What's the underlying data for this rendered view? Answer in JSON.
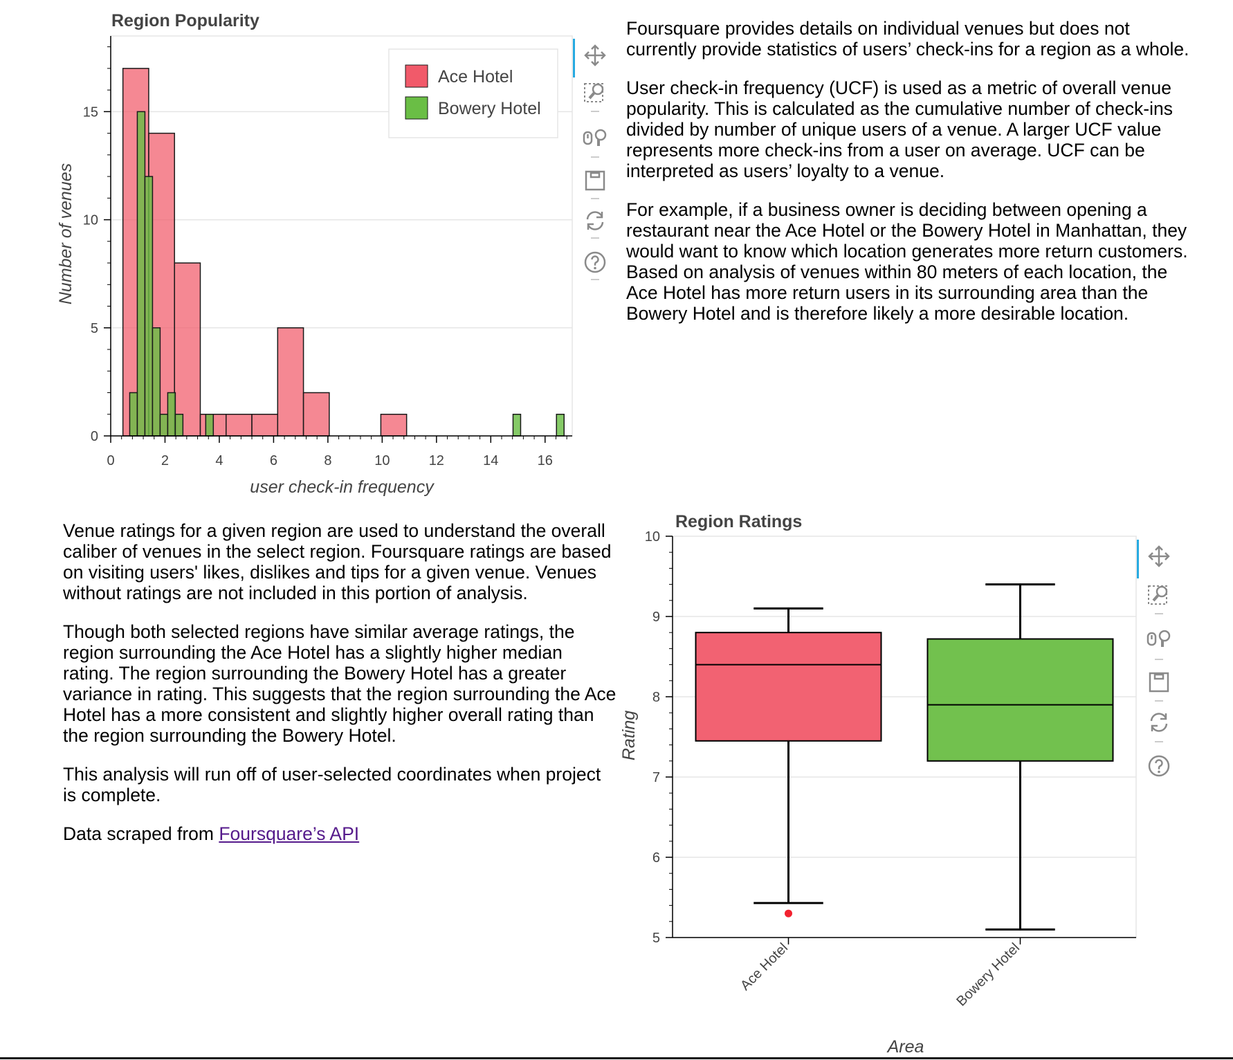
{
  "chart_data": [
    {
      "type": "bar",
      "title": "Region Popularity",
      "xlabel": "user check-in frequency",
      "ylabel": "Number of venues",
      "xlim": [
        0,
        17
      ],
      "ylim": [
        0,
        18.5
      ],
      "xticks": [
        "0",
        "2",
        "4",
        "6",
        "8",
        "10",
        "12",
        "14",
        "16"
      ],
      "yticks": [
        "0",
        "5",
        "10",
        "15"
      ],
      "grid": true,
      "legend_position": "top-right",
      "series": [
        {
          "name": "Ace Hotel",
          "color": "#f15a6a",
          "bins": [
            {
              "x0": 0.45,
              "x1": 1.4,
              "count": 17
            },
            {
              "x0": 1.4,
              "x1": 2.35,
              "count": 14
            },
            {
              "x0": 2.35,
              "x1": 3.3,
              "count": 8
            },
            {
              "x0": 3.3,
              "x1": 4.25,
              "count": 1
            },
            {
              "x0": 4.25,
              "x1": 5.2,
              "count": 1
            },
            {
              "x0": 5.2,
              "x1": 6.15,
              "count": 1
            },
            {
              "x0": 6.15,
              "x1": 7.1,
              "count": 5
            },
            {
              "x0": 7.1,
              "x1": 8.05,
              "count": 2
            },
            {
              "x0": 8.05,
              "x1": 9.0,
              "count": 0
            },
            {
              "x0": 9.0,
              "x1": 9.95,
              "count": 0
            },
            {
              "x0": 9.95,
              "x1": 10.9,
              "count": 1
            }
          ]
        },
        {
          "name": "Bowery Hotel",
          "color": "#6abe45",
          "bins": [
            {
              "x0": 0.7,
              "x1": 0.98,
              "count": 2
            },
            {
              "x0": 0.98,
              "x1": 1.26,
              "count": 15
            },
            {
              "x0": 1.26,
              "x1": 1.54,
              "count": 12
            },
            {
              "x0": 1.54,
              "x1": 1.82,
              "count": 5
            },
            {
              "x0": 1.82,
              "x1": 2.1,
              "count": 1
            },
            {
              "x0": 2.1,
              "x1": 2.38,
              "count": 2
            },
            {
              "x0": 2.38,
              "x1": 2.66,
              "count": 1
            },
            {
              "x0": 3.5,
              "x1": 3.78,
              "count": 1
            },
            {
              "x0": 14.82,
              "x1": 15.1,
              "count": 1
            },
            {
              "x0": 16.42,
              "x1": 16.7,
              "count": 1
            }
          ]
        }
      ]
    },
    {
      "type": "box",
      "title": "Region Ratings",
      "xlabel": "Area",
      "ylabel": "Rating",
      "categories": [
        "Ace Hotel",
        "Bowery Hotel"
      ],
      "ylim": [
        5,
        10
      ],
      "yticks": [
        "5",
        "6",
        "7",
        "8",
        "9",
        "10"
      ],
      "grid": true,
      "boxes": [
        {
          "category": "Ace Hotel",
          "color": "#f15a6a",
          "lower_whisker": 5.43,
          "q1": 7.45,
          "median": 8.4,
          "q3": 8.8,
          "upper_whisker": 9.1,
          "outliers": [
            5.3
          ]
        },
        {
          "category": "Bowery Hotel",
          "color": "#6abe45",
          "lower_whisker": 5.1,
          "q1": 7.2,
          "median": 7.9,
          "q3": 8.72,
          "upper_whisker": 9.4,
          "outliers": []
        }
      ]
    }
  ],
  "text_top": {
    "p1": "Foursquare provides details on individual venues but does not currently provide statistics of users’ check-ins for a region as a whole.",
    "p2": "User check-in frequency (UCF) is used as a metric of overall venue popularity. This is calculated as the cumulative number of check-ins divided by number of unique users of a venue. A larger UCF value represents more check-ins from a user on average. UCF can be interpreted as users’ loyalty to a venue.",
    "p3": "For example, if a business owner is deciding between opening a restaurant near the Ace Hotel or the Bowery Hotel in Manhattan, they would want to know which location generates more return customers. Based on analysis of venues within 80 meters of each location, the Ace Hotel has more return users in its surrounding area than the Bowery Hotel and is therefore likely a more desirable location."
  },
  "text_bottom": {
    "p1": "Venue ratings for a given region are used to understand the overall caliber of venues in the select region. Foursquare ratings are based on visiting users' likes, dislikes and tips for a given venue. Venues without ratings are not included in this portion of analysis.",
    "p2": "Though both selected regions have similar average ratings, the region surrounding the Ace Hotel has a slightly higher median rating. The region surrounding the Bowery Hotel has a greater variance in rating. This suggests that the region surrounding the Ace Hotel has a more consistent and slightly higher overall rating than the region surrounding the Bowery Hotel.",
    "p3": "This analysis will run off of user-selected coordinates when project is complete.",
    "p4_prefix": "Data scraped from ",
    "p4_link": "Foursquare’s API"
  },
  "toolbar": {
    "tools": [
      "pan-icon",
      "box-zoom-icon",
      "wheel-zoom-icon",
      "save-icon",
      "reset-icon",
      "help-icon"
    ]
  }
}
